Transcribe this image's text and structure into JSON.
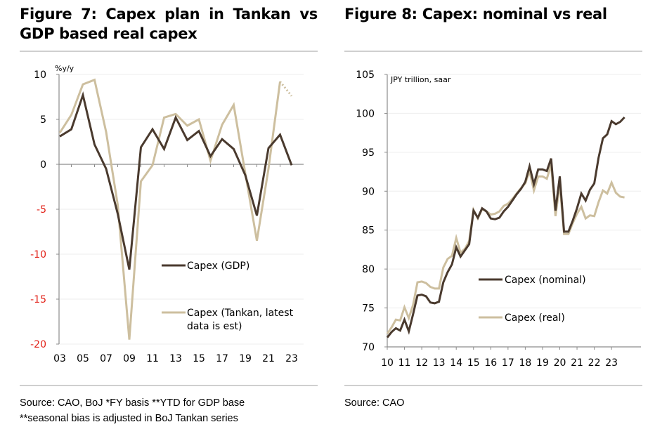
{
  "colors": {
    "dark_series": "#4a3a2e",
    "light_series": "#cdbf9f",
    "negative_tick": "#e2231a",
    "axis": "#8c8c8c",
    "grid": "#eeeeee",
    "rule": "#cfcfcf"
  },
  "chart_data": [
    {
      "type": "line",
      "title": "Figure 7: Capex plan in Tankan vs GDP based real capex",
      "unit_label": "%y/y",
      "xlabel": "",
      "ylabel": "%y/y",
      "ylim": [
        -20,
        10
      ],
      "yticks": [
        10,
        5,
        0,
        -5,
        -10,
        -15,
        -20
      ],
      "ytick_labels": [
        "10",
        "5",
        "0",
        "-5",
        "-10",
        "-15",
        "-20"
      ],
      "x": [
        2003,
        2004,
        2005,
        2006,
        2007,
        2008,
        2009,
        2010,
        2011,
        2012,
        2013,
        2014,
        2015,
        2016,
        2017,
        2018,
        2019,
        2020,
        2021,
        2022,
        2023
      ],
      "xticks": [
        2003,
        2005,
        2007,
        2009,
        2011,
        2013,
        2015,
        2017,
        2019,
        2021,
        2023
      ],
      "xtick_labels": [
        "03",
        "05",
        "07",
        "09",
        "11",
        "13",
        "15",
        "17",
        "19",
        "21",
        "23"
      ],
      "grid": true,
      "legend_position": "bottom-right",
      "series": [
        {
          "name": "Capex (GDP)",
          "color_key": "dark_series",
          "values": [
            3.1,
            3.9,
            7.7,
            2.2,
            -0.5,
            -5.5,
            -11.7,
            1.9,
            3.9,
            1.7,
            5.2,
            2.7,
            3.7,
            0.9,
            2.8,
            1.7,
            -1.2,
            -5.7,
            1.8,
            3.3,
            -0.1
          ]
        },
        {
          "name": "Capex (Tankan, latest data is est)",
          "color_key": "light_series",
          "values": [
            3.5,
            5.5,
            8.9,
            9.4,
            3.6,
            -4.5,
            -19.5,
            -1.9,
            -0.1,
            5.2,
            5.6,
            4.3,
            5.0,
            0.4,
            4.4,
            6.6,
            -1.0,
            -8.5,
            -0.5,
            9.2,
            null
          ],
          "estimate": {
            "x": [
              2022,
              2023
            ],
            "values": [
              9.2,
              7.6
            ],
            "style": "dotted"
          }
        }
      ],
      "legend": [
        "Capex (GDP)",
        "Capex (Tankan, latest",
        "data is est)"
      ],
      "source": "Source: CAO, BoJ *FY basis **YTD for GDP base **seasonal bias is adjusted in BoJ Tankan series"
    },
    {
      "type": "line",
      "title": "Figure 8: Capex: nominal vs real",
      "unit_label": "JPY trillion, saar",
      "xlabel": "",
      "ylabel": "JPY trillion, saar",
      "ylim": [
        70,
        105
      ],
      "yticks": [
        105,
        100,
        95,
        90,
        85,
        80,
        75,
        70
      ],
      "ytick_labels": [
        "105",
        "100",
        "95",
        "90",
        "85",
        "80",
        "75",
        "70"
      ],
      "x_start": 2010,
      "frequency": "quarterly",
      "xticks": [
        2010,
        2011,
        2012,
        2013,
        2014,
        2015,
        2016,
        2017,
        2018,
        2019,
        2020,
        2021,
        2022,
        2023
      ],
      "xtick_labels": [
        "10",
        "11",
        "12",
        "13",
        "14",
        "15",
        "16",
        "17",
        "18",
        "19",
        "20",
        "21",
        "22",
        "23"
      ],
      "grid": true,
      "legend_position": "bottom-right",
      "series": [
        {
          "name": "Capex (nominal)",
          "color_key": "dark_series",
          "values": [
            71.2,
            71.9,
            72.4,
            72.1,
            73.5,
            72.0,
            74.2,
            76.6,
            76.7,
            76.5,
            75.7,
            75.6,
            75.8,
            78.3,
            79.6,
            80.6,
            82.8,
            81.6,
            82.4,
            83.2,
            87.5,
            86.6,
            87.8,
            87.4,
            86.5,
            86.4,
            86.6,
            87.4,
            88.0,
            88.8,
            89.6,
            90.3,
            91.2,
            93.2,
            90.9,
            92.8,
            92.8,
            92.6,
            94.2,
            87.5,
            91.9,
            84.8,
            84.8,
            86.2,
            87.8,
            89.7,
            88.8,
            90.2,
            91.0,
            94.3,
            96.8,
            97.3,
            99.0,
            98.6,
            98.9,
            99.5
          ],
          "color": "#4a3a2e"
        },
        {
          "name": "Capex (real)",
          "color_key": "light_series",
          "values": [
            71.7,
            72.5,
            73.5,
            73.4,
            75.1,
            73.7,
            75.4,
            78.3,
            78.4,
            78.2,
            77.7,
            77.5,
            77.5,
            80.2,
            81.3,
            81.7,
            84.0,
            82.1,
            82.6,
            83.6,
            87.6,
            86.5,
            87.7,
            87.4,
            87.0,
            87.1,
            87.4,
            88.1,
            88.4,
            89.0,
            89.7,
            90.4,
            91.0,
            92.6,
            90.1,
            91.9,
            91.9,
            91.6,
            93.4,
            86.8,
            90.9,
            84.5,
            84.5,
            85.9,
            87.1,
            88.0,
            86.5,
            86.9,
            86.8,
            88.6,
            90.1,
            89.7,
            91.1,
            89.8,
            89.3,
            89.2
          ]
        }
      ],
      "legend": [
        "Capex (nominal)",
        "Capex (real)"
      ],
      "source": "Source: CAO"
    }
  ],
  "left": {
    "title": "Figure 7: Capex plan in Tankan vs GDP based real capex",
    "unit": "%y/y",
    "legend_gdp": "Capex (GDP)",
    "legend_tankan_1": "Capex (Tankan, latest",
    "legend_tankan_2": "data is est)",
    "source_line1": "Source: CAO, BoJ *FY basis **YTD for GDP base",
    "source_line2": "**seasonal bias is adjusted in BoJ Tankan series"
  },
  "right": {
    "title": "Figure 8: Capex: nominal vs real",
    "unit": "JPY trillion, saar",
    "legend_nominal": "Capex (nominal)",
    "legend_real": "Capex (real)",
    "source": "Source: CAO"
  }
}
